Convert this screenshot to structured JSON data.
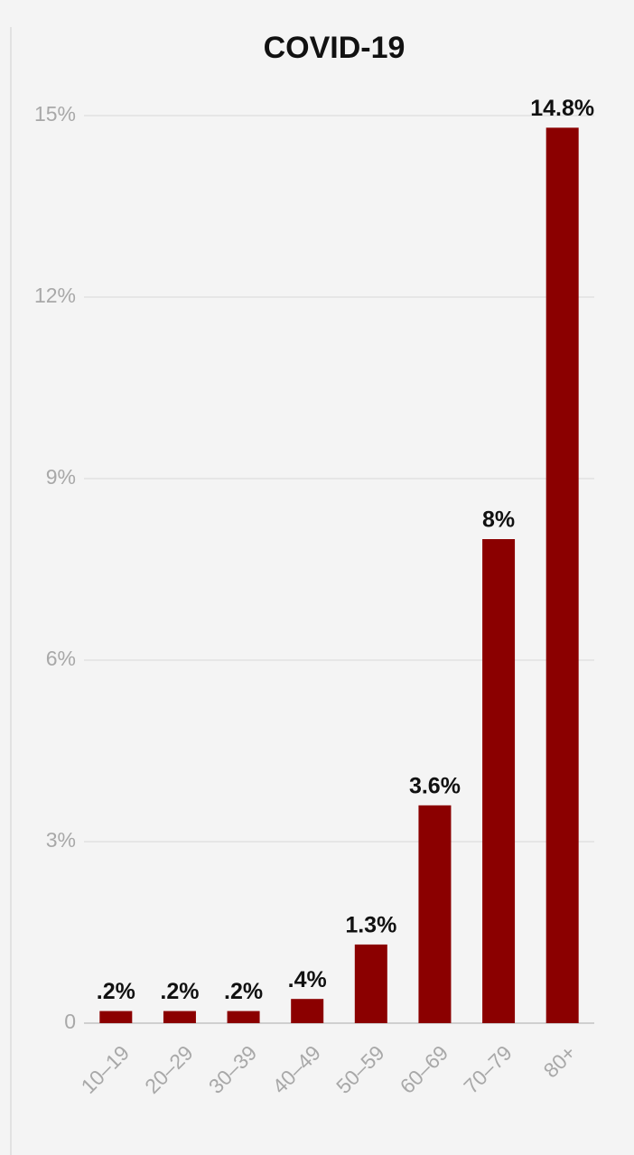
{
  "chart_data": {
    "type": "bar",
    "title": "COVID-19",
    "categories": [
      "10–19",
      "20–29",
      "30–39",
      "40–49",
      "50–59",
      "60–69",
      "70–79",
      "80+"
    ],
    "values": [
      0.2,
      0.2,
      0.2,
      0.4,
      1.3,
      3.6,
      8,
      14.8
    ],
    "value_labels": [
      ".2%",
      ".2%",
      ".2%",
      ".4%",
      "1.3%",
      "3.6%",
      "8%",
      "14.8%"
    ],
    "color": "#8b0000",
    "ylim": [
      0,
      15
    ],
    "yticks": [
      0,
      {
        "value": 3,
        "label": "3%"
      },
      {
        "value": 6,
        "label": "6%"
      },
      {
        "value": 9,
        "label": "9%"
      },
      {
        "value": 12,
        "label": "12%"
      },
      {
        "value": 15,
        "label": "15%"
      }
    ],
    "grid": true
  }
}
